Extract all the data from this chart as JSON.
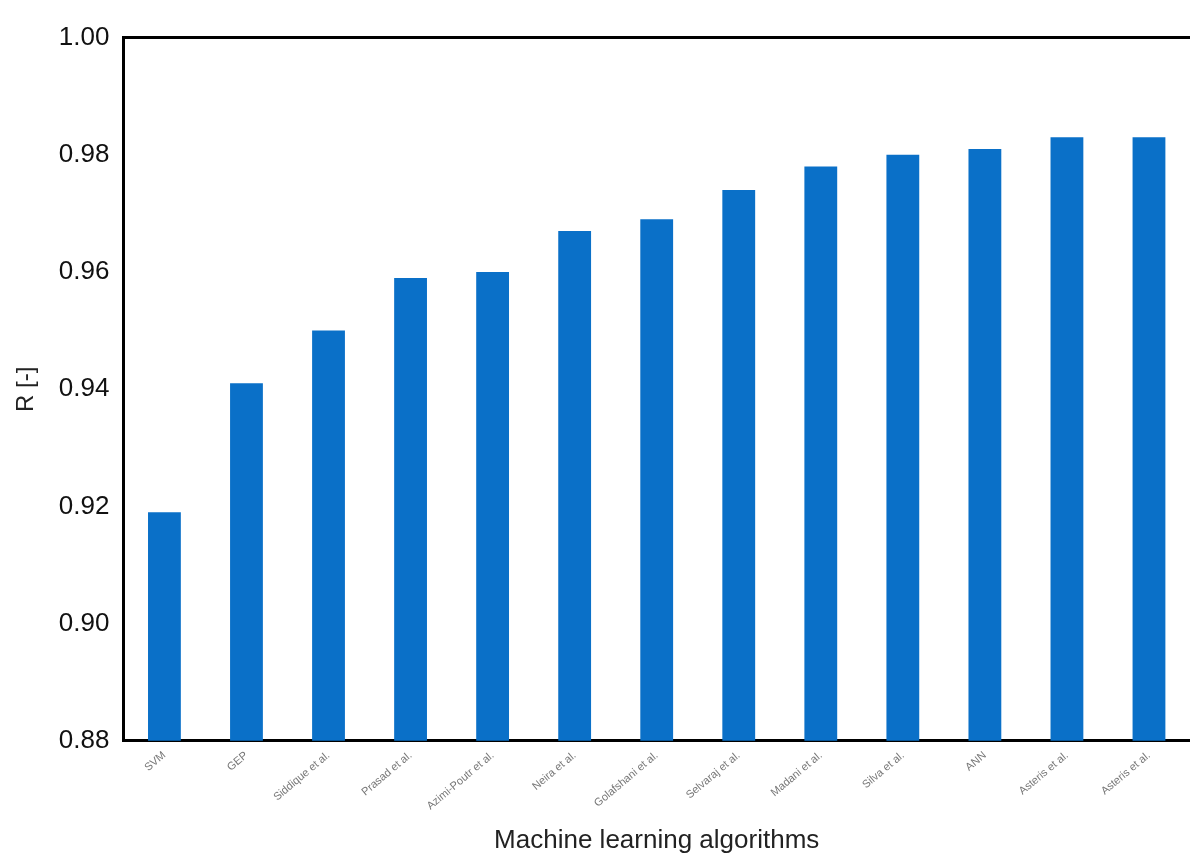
{
  "chart_data": {
    "type": "bar",
    "xlabel": "Machine learning algorithms",
    "ylabel": "R [-]",
    "categories": [
      "SVM",
      "GEP",
      "Siddique et al.",
      "Prasad et al.",
      "Azimi-Poutr et al.",
      "Neira et al.",
      "Golafshani et al.",
      "Selvaraj et al.",
      "Madani et al.",
      "Silva et al.",
      "ANN",
      "Asteris et al.",
      "Asteris et al."
    ],
    "values": [
      0.919,
      0.941,
      0.95,
      0.959,
      0.96,
      0.967,
      0.969,
      0.974,
      0.978,
      0.98,
      0.981,
      0.983,
      0.983
    ],
    "color": "#0a70c8",
    "ylim": [
      0.88,
      1.0
    ],
    "yticks": [
      {
        "value": 0.88,
        "label": "0.88"
      },
      {
        "value": 0.9,
        "label": "0.90"
      },
      {
        "value": 0.92,
        "label": "0.92"
      },
      {
        "value": 0.94,
        "label": "0.94"
      },
      {
        "value": 0.96,
        "label": "0.96"
      },
      {
        "value": 0.98,
        "label": "0.98"
      },
      {
        "value": 1.0,
        "label": "1.00"
      }
    ],
    "grid": false,
    "legend": false
  }
}
